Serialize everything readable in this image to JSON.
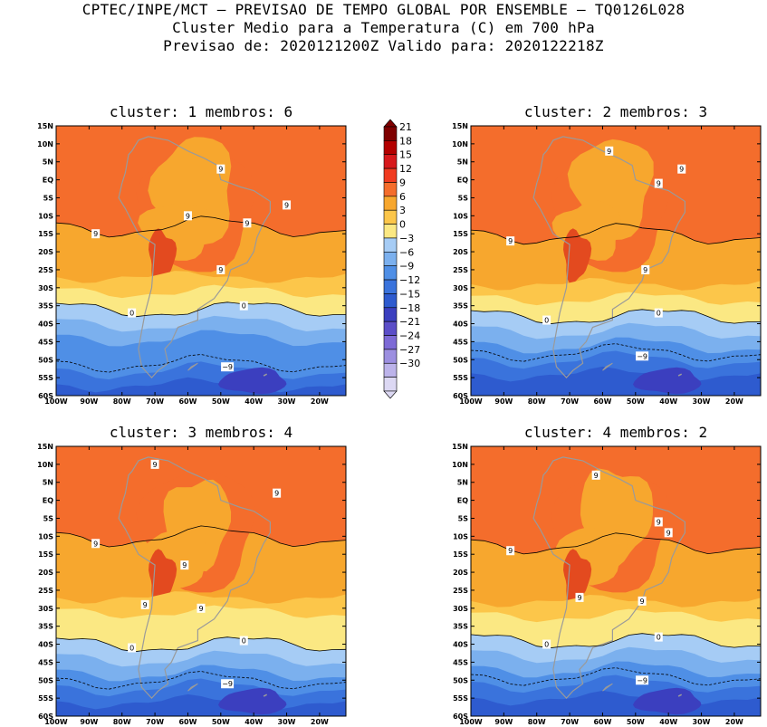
{
  "header": {
    "line1": "CPTEC/INPE/MCT – PREVISAO DE TEMPO GLOBAL POR ENSEMBLE – TQ0126L028",
    "line2": "Cluster Medio para a Temperatura (C) em 700 hPa",
    "line3": "Previsao de: 2020121200Z   Valido para: 2020122218Z"
  },
  "panels": [
    {
      "title": "cluster: 1  membros: 6"
    },
    {
      "title": "cluster: 2  membros: 3"
    },
    {
      "title": "cluster: 3  membros: 4"
    },
    {
      "title": "cluster: 4  membros: 2"
    }
  ],
  "axes": {
    "lat_ticks": [
      "15N",
      "10N",
      "5N",
      "EQ",
      "5S",
      "10S",
      "15S",
      "20S",
      "25S",
      "30S",
      "35S",
      "40S",
      "45S",
      "50S",
      "55S",
      "60S"
    ],
    "lon_ticks": [
      "100W",
      "90W",
      "80W",
      "70W",
      "60W",
      "50W",
      "40W",
      "30W",
      "20W"
    ],
    "lat_range": [
      -60,
      15
    ],
    "lon_range": [
      -100,
      -12
    ]
  },
  "colorbar": {
    "labels": [
      "21",
      "18",
      "15",
      "12",
      "9",
      "6",
      "3",
      "0",
      "−3",
      "−6",
      "−9",
      "−12",
      "−15",
      "−18",
      "−21",
      "−24",
      "−27",
      "−30"
    ],
    "colors": [
      "#7f0000",
      "#b30000",
      "#d7191c",
      "#f03b20",
      "#f46d2c",
      "#f7a72e",
      "#fcc64a",
      "#fbe883",
      "#a6ccf5",
      "#7bb0ee",
      "#4f8fe6",
      "#3a73dc",
      "#2e5bcf",
      "#3b3fbf",
      "#5b4ec8",
      "#7d6ad6",
      "#9c8fe0",
      "#bcb3ea",
      "#dcd8f3"
    ]
  },
  "contour_labels": {
    "nine": "9",
    "zero": "0",
    "neg_nine": "−9"
  }
}
